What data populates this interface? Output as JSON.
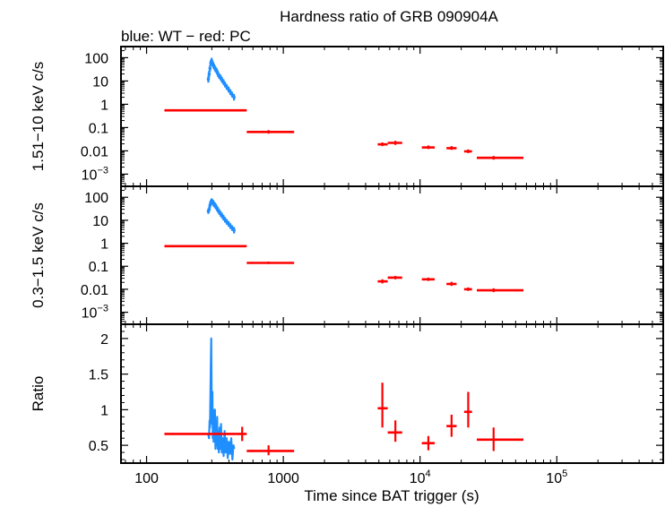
{
  "title": "Hardness ratio of GRB 090904A",
  "subtitle": "blue: WT − red: PC",
  "xlabel": "Time since BAT trigger (s)",
  "colors": {
    "wt": "#1f8fff",
    "pc": "#ff0000",
    "axis": "#000000"
  },
  "chart_data": {
    "type": "scatter",
    "x_scale": "log",
    "xlim": [
      65,
      600000
    ],
    "x_ticks": [
      {
        "value": 100,
        "label": "100"
      },
      {
        "value": 1000,
        "label": "1000"
      },
      {
        "value": 10000,
        "base": "10",
        "exp": "4"
      },
      {
        "value": 100000,
        "base": "10",
        "exp": "5"
      }
    ],
    "panels": [
      {
        "ylabel": "1.51−10 keV c/s",
        "y_scale": "log",
        "ylim": [
          0.0003,
          300
        ],
        "y_ticks": [
          {
            "value": 100,
            "label": "100"
          },
          {
            "value": 10,
            "label": "10"
          },
          {
            "value": 1,
            "label": "1"
          },
          {
            "value": 0.1,
            "label": "0.1"
          },
          {
            "value": 0.01,
            "label": "0.01"
          },
          {
            "value": 0.001,
            "base": "10",
            "exp": "−3"
          }
        ],
        "series": [
          {
            "style": "wt",
            "points": [
              {
                "x": 283,
                "y": 12,
                "yerr": 0.15
              },
              {
                "x": 287,
                "y": 20,
                "yerr": 0.15
              },
              {
                "x": 291,
                "y": 35,
                "yerr": 0.15
              },
              {
                "x": 295,
                "y": 60,
                "yerr": 0.12
              },
              {
                "x": 299,
                "y": 75,
                "yerr": 0.12
              },
              {
                "x": 303,
                "y": 55,
                "yerr": 0.12
              },
              {
                "x": 307,
                "y": 50,
                "yerr": 0.12
              },
              {
                "x": 311,
                "y": 42,
                "yerr": 0.12
              },
              {
                "x": 316,
                "y": 35,
                "yerr": 0.12
              },
              {
                "x": 321,
                "y": 30,
                "yerr": 0.12
              },
              {
                "x": 327,
                "y": 26,
                "yerr": 0.12
              },
              {
                "x": 333,
                "y": 20,
                "yerr": 0.12
              },
              {
                "x": 340,
                "y": 16,
                "yerr": 0.12
              },
              {
                "x": 348,
                "y": 14,
                "yerr": 0.12
              },
              {
                "x": 356,
                "y": 11,
                "yerr": 0.12
              },
              {
                "x": 365,
                "y": 9,
                "yerr": 0.12
              },
              {
                "x": 375,
                "y": 7,
                "yerr": 0.12
              },
              {
                "x": 386,
                "y": 5.5,
                "yerr": 0.12
              },
              {
                "x": 398,
                "y": 4.3,
                "yerr": 0.12
              },
              {
                "x": 410,
                "y": 3.3,
                "yerr": 0.12
              },
              {
                "x": 422,
                "y": 2.6,
                "yerr": 0.12
              },
              {
                "x": 436,
                "y": 2.0,
                "yerr": 0.14
              }
            ]
          },
          {
            "style": "pc",
            "points": [
              {
                "x": 500,
                "xlo": 135,
                "xhi": 540,
                "y": 0.55
              },
              {
                "x": 780,
                "xlo": 540,
                "xhi": 1200,
                "y": 0.065,
                "ylo": 0.055,
                "yhi": 0.078
              },
              {
                "x": 5300,
                "xlo": 4900,
                "xhi": 5800,
                "y": 0.019,
                "ylo": 0.016,
                "yhi": 0.023
              },
              {
                "x": 6600,
                "xlo": 5800,
                "xhi": 7400,
                "y": 0.022,
                "ylo": 0.018,
                "yhi": 0.027
              },
              {
                "x": 11500,
                "xlo": 10300,
                "xhi": 12800,
                "y": 0.014,
                "ylo": 0.012,
                "yhi": 0.017
              },
              {
                "x": 17000,
                "xlo": 15600,
                "xhi": 18500,
                "y": 0.013,
                "ylo": 0.011,
                "yhi": 0.016
              },
              {
                "x": 22500,
                "xlo": 21000,
                "xhi": 24000,
                "y": 0.0095,
                "ylo": 0.008,
                "yhi": 0.0115
              },
              {
                "x": 34500,
                "xlo": 26000,
                "xhi": 57000,
                "y": 0.005,
                "ylo": 0.0042,
                "yhi": 0.006
              }
            ]
          }
        ]
      },
      {
        "ylabel": "0.3−1.5 keV c/s",
        "y_scale": "log",
        "ylim": [
          0.0003,
          300
        ],
        "y_ticks": [
          {
            "value": 100,
            "label": "100"
          },
          {
            "value": 10,
            "label": "10"
          },
          {
            "value": 1,
            "label": "1"
          },
          {
            "value": 0.1,
            "label": "0.1"
          },
          {
            "value": 0.01,
            "label": "0.01"
          },
          {
            "value": 0.001,
            "base": "10",
            "exp": "−3"
          }
        ],
        "series": [
          {
            "style": "wt",
            "points": [
              {
                "x": 283,
                "y": 25,
                "yerr": 0.12
              },
              {
                "x": 287,
                "y": 30,
                "yerr": 0.12
              },
              {
                "x": 291,
                "y": 45,
                "yerr": 0.12
              },
              {
                "x": 295,
                "y": 60,
                "yerr": 0.12
              },
              {
                "x": 299,
                "y": 68,
                "yerr": 0.12
              },
              {
                "x": 303,
                "y": 62,
                "yerr": 0.12
              },
              {
                "x": 307,
                "y": 58,
                "yerr": 0.12
              },
              {
                "x": 311,
                "y": 50,
                "yerr": 0.12
              },
              {
                "x": 316,
                "y": 45,
                "yerr": 0.12
              },
              {
                "x": 321,
                "y": 40,
                "yerr": 0.12
              },
              {
                "x": 327,
                "y": 33,
                "yerr": 0.12
              },
              {
                "x": 333,
                "y": 28,
                "yerr": 0.12
              },
              {
                "x": 340,
                "y": 23,
                "yerr": 0.12
              },
              {
                "x": 348,
                "y": 19,
                "yerr": 0.12
              },
              {
                "x": 356,
                "y": 16,
                "yerr": 0.12
              },
              {
                "x": 365,
                "y": 13,
                "yerr": 0.12
              },
              {
                "x": 375,
                "y": 10.5,
                "yerr": 0.12
              },
              {
                "x": 386,
                "y": 8.5,
                "yerr": 0.12
              },
              {
                "x": 398,
                "y": 7,
                "yerr": 0.12
              },
              {
                "x": 410,
                "y": 5.6,
                "yerr": 0.12
              },
              {
                "x": 422,
                "y": 4.6,
                "yerr": 0.12
              },
              {
                "x": 436,
                "y": 3.7,
                "yerr": 0.14
              }
            ]
          },
          {
            "style": "pc",
            "points": [
              {
                "x": 500,
                "xlo": 135,
                "xhi": 540,
                "y": 0.75
              },
              {
                "x": 780,
                "xlo": 540,
                "xhi": 1200,
                "y": 0.14,
                "ylo": 0.125,
                "yhi": 0.16
              },
              {
                "x": 5300,
                "xlo": 4900,
                "xhi": 5800,
                "y": 0.022,
                "ylo": 0.018,
                "yhi": 0.027
              },
              {
                "x": 6600,
                "xlo": 5800,
                "xhi": 7400,
                "y": 0.032,
                "ylo": 0.027,
                "yhi": 0.038
              },
              {
                "x": 11500,
                "xlo": 10300,
                "xhi": 12800,
                "y": 0.027,
                "ylo": 0.023,
                "yhi": 0.032
              },
              {
                "x": 17000,
                "xlo": 15600,
                "xhi": 18500,
                "y": 0.017,
                "ylo": 0.014,
                "yhi": 0.021
              },
              {
                "x": 22500,
                "xlo": 21000,
                "xhi": 24000,
                "y": 0.01,
                "ylo": 0.0085,
                "yhi": 0.012
              },
              {
                "x": 34500,
                "xlo": 26000,
                "xhi": 57000,
                "y": 0.009,
                "ylo": 0.0075,
                "yhi": 0.011
              }
            ]
          }
        ]
      },
      {
        "ylabel": "Ratio",
        "y_scale": "linear",
        "ylim": [
          0.25,
          2.2
        ],
        "y_ticks": [
          {
            "value": 2,
            "label": "2"
          },
          {
            "value": 1.5,
            "label": "1.5"
          },
          {
            "value": 1,
            "label": "1"
          },
          {
            "value": 0.5,
            "label": "0.5"
          }
        ],
        "series": [
          {
            "style": "wt",
            "line": [
              [
                283,
                0.65
              ],
              [
                286,
                0.6
              ],
              [
                289,
                0.85
              ],
              [
                291,
                0.75
              ],
              [
                293,
                1.2
              ],
              [
                295,
                1.6
              ],
              [
                297,
                2.0
              ],
              [
                299,
                1.3
              ],
              [
                301,
                0.8
              ],
              [
                303,
                1.25
              ],
              [
                305,
                0.6
              ],
              [
                307,
                1.0
              ],
              [
                309,
                0.55
              ],
              [
                311,
                0.85
              ],
              [
                313,
                0.6
              ],
              [
                316,
                1.0
              ],
              [
                319,
                0.45
              ],
              [
                322,
                0.8
              ],
              [
                325,
                0.5
              ],
              [
                328,
                0.9
              ],
              [
                331,
                0.45
              ],
              [
                334,
                0.7
              ],
              [
                338,
                0.4
              ],
              [
                342,
                0.75
              ],
              [
                346,
                0.45
              ],
              [
                350,
                0.8
              ],
              [
                355,
                0.4
              ],
              [
                360,
                0.6
              ],
              [
                366,
                0.35
              ],
              [
                372,
                0.7
              ],
              [
                378,
                0.4
              ],
              [
                385,
                0.6
              ],
              [
                392,
                0.32
              ],
              [
                400,
                0.55
              ],
              [
                408,
                0.38
              ],
              [
                416,
                0.6
              ],
              [
                424,
                0.3
              ],
              [
                432,
                0.5
              ],
              [
                438,
                0.45
              ]
            ]
          },
          {
            "style": "pc",
            "points": [
              {
                "x": 500,
                "xlo": 135,
                "xhi": 540,
                "y": 0.66,
                "ylo": 0.56,
                "yhi": 0.76
              },
              {
                "x": 780,
                "xlo": 540,
                "xhi": 1200,
                "y": 0.42,
                "ylo": 0.36,
                "yhi": 0.5
              },
              {
                "x": 5300,
                "xlo": 4900,
                "xhi": 5800,
                "y": 1.02,
                "ylo": 0.75,
                "yhi": 1.38
              },
              {
                "x": 6600,
                "xlo": 5800,
                "xhi": 7400,
                "y": 0.68,
                "ylo": 0.55,
                "yhi": 0.85
              },
              {
                "x": 11500,
                "xlo": 10300,
                "xhi": 12800,
                "y": 0.53,
                "ylo": 0.43,
                "yhi": 0.63
              },
              {
                "x": 17000,
                "xlo": 15600,
                "xhi": 18500,
                "y": 0.77,
                "ylo": 0.62,
                "yhi": 0.93
              },
              {
                "x": 22500,
                "xlo": 21000,
                "xhi": 24000,
                "y": 0.97,
                "ylo": 0.75,
                "yhi": 1.25
              },
              {
                "x": 34500,
                "xlo": 26000,
                "xhi": 57000,
                "y": 0.58,
                "ylo": 0.42,
                "yhi": 0.75
              }
            ]
          }
        ]
      }
    ]
  }
}
